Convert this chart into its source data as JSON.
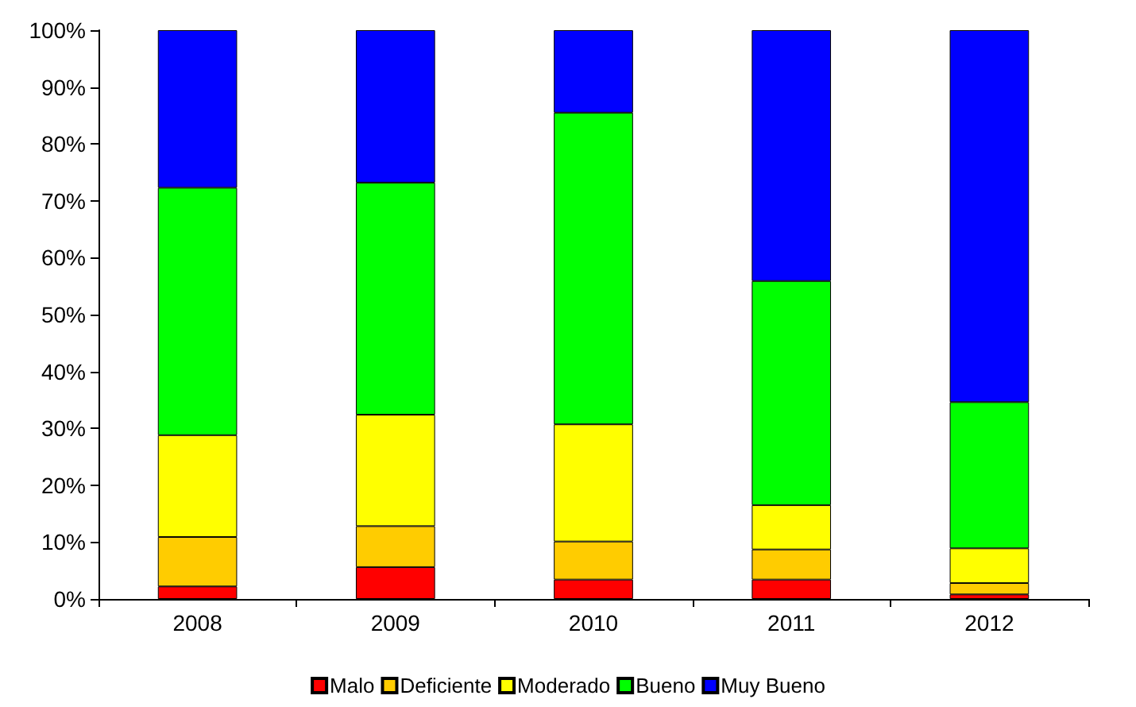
{
  "chart_data": {
    "type": "bar",
    "stacked": true,
    "categories": [
      "2008",
      "2009",
      "2010",
      "2011",
      "2012"
    ],
    "series": [
      {
        "name": "Malo",
        "color": "#ff0000",
        "values": [
          2.2,
          5.6,
          3.4,
          3.4,
          0.8
        ]
      },
      {
        "name": "Deficiente",
        "color": "#ffcc00",
        "values": [
          8.7,
          7.2,
          6.7,
          5.3,
          2.0
        ]
      },
      {
        "name": "Moderado",
        "color": "#ffff00",
        "values": [
          17.9,
          19.6,
          20.6,
          7.8,
          6.1
        ]
      },
      {
        "name": "Bueno",
        "color": "#00ff00",
        "values": [
          43.5,
          40.8,
          54.8,
          39.4,
          25.7
        ]
      },
      {
        "name": "Muy Bueno",
        "color": "#0000ff",
        "values": [
          27.7,
          26.8,
          14.5,
          44.1,
          65.4
        ]
      }
    ],
    "ylim": [
      0,
      100
    ],
    "yticks": [
      {
        "value": 0,
        "label": "0%"
      },
      {
        "value": 10,
        "label": "10%"
      },
      {
        "value": 20,
        "label": "20%"
      },
      {
        "value": 30,
        "label": "30%"
      },
      {
        "value": 40,
        "label": "40%"
      },
      {
        "value": 50,
        "label": "50%"
      },
      {
        "value": 60,
        "label": "60%"
      },
      {
        "value": 70,
        "label": "70%"
      },
      {
        "value": 80,
        "label": "80%"
      },
      {
        "value": 90,
        "label": "90%"
      },
      {
        "value": 100,
        "label": "100%"
      }
    ],
    "grid": false,
    "legend": "bottom"
  }
}
